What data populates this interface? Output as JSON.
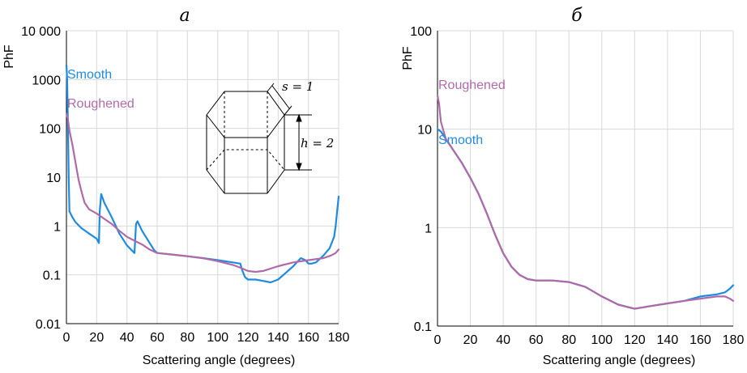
{
  "colors": {
    "smooth": "#1f8be0",
    "roughened": "#b06aa8",
    "grid": "#d9d9d9",
    "axis": "#000000"
  },
  "chart_data": [
    {
      "panel": "a",
      "type": "line",
      "title": "а",
      "xlabel": "Scattering angle (degrees)",
      "ylabel": "PhF",
      "yscale": "log",
      "xlim": [
        0,
        180
      ],
      "ylim": [
        0.01,
        10000
      ],
      "xticks": [
        0,
        20,
        40,
        60,
        80,
        100,
        120,
        140,
        160,
        180
      ],
      "xtick_labels": [
        "0",
        "20",
        "40",
        "60",
        "80",
        "100",
        "120",
        "140",
        "160",
        "180"
      ],
      "yticks": [
        0.01,
        0.1,
        1,
        10,
        100,
        1000,
        10000
      ],
      "ytick_labels": [
        "0.01",
        "0.1",
        "1",
        "10",
        "100",
        "1000",
        "10 000"
      ],
      "grid": true,
      "series": [
        {
          "name": "Smooth",
          "color_key": "smooth",
          "x": [
            0,
            0.5,
            1,
            1.5,
            2,
            4,
            6,
            10,
            15,
            20,
            21.5,
            22,
            23,
            25,
            30,
            35,
            40,
            45,
            46,
            47,
            50,
            55,
            58,
            60,
            70,
            80,
            90,
            100,
            110,
            115,
            116,
            118,
            120,
            125,
            130,
            135,
            140,
            145,
            150,
            155,
            158,
            160,
            162,
            165,
            170,
            174,
            177,
            178,
            179,
            180
          ],
          "y": [
            2000,
            1000,
            100,
            10,
            2,
            1.5,
            1.2,
            0.9,
            0.7,
            0.55,
            0.45,
            2.0,
            4.5,
            3.0,
            1.5,
            0.7,
            0.4,
            0.28,
            1.1,
            1.25,
            0.8,
            0.45,
            0.32,
            0.28,
            0.26,
            0.24,
            0.22,
            0.2,
            0.18,
            0.17,
            0.13,
            0.09,
            0.08,
            0.08,
            0.075,
            0.07,
            0.08,
            0.11,
            0.15,
            0.22,
            0.2,
            0.17,
            0.17,
            0.18,
            0.25,
            0.35,
            0.6,
            1.0,
            2.0,
            4.0
          ]
        },
        {
          "name": "Roughened",
          "color_key": "roughened",
          "x": [
            0,
            1,
            2,
            4,
            6,
            8,
            10,
            12,
            15,
            20,
            25,
            30,
            35,
            40,
            45,
            50,
            55,
            60,
            70,
            80,
            90,
            100,
            110,
            115,
            120,
            125,
            130,
            140,
            150,
            160,
            170,
            175,
            178,
            180
          ],
          "y": [
            200,
            150,
            90,
            45,
            20,
            9,
            5,
            3,
            2.2,
            1.8,
            1.4,
            1.1,
            0.8,
            0.6,
            0.5,
            0.42,
            0.33,
            0.28,
            0.26,
            0.24,
            0.22,
            0.19,
            0.16,
            0.14,
            0.12,
            0.115,
            0.12,
            0.15,
            0.18,
            0.2,
            0.22,
            0.25,
            0.28,
            0.33
          ]
        }
      ],
      "annotations": [
        "Smooth",
        "Roughened"
      ],
      "inset": {
        "s_label": "s = 1",
        "h_label": "h = 2"
      }
    },
    {
      "panel": "б",
      "type": "line",
      "title": "б",
      "xlabel": "Scattering angle (degrees)",
      "ylabel": "PhF",
      "yscale": "log",
      "xlim": [
        0,
        180
      ],
      "ylim": [
        0.1,
        100
      ],
      "xticks": [
        0,
        20,
        40,
        60,
        80,
        100,
        120,
        140,
        160,
        180
      ],
      "xtick_labels": [
        "0",
        "20",
        "40",
        "60",
        "80",
        "100",
        "120",
        "140",
        "160",
        "180"
      ],
      "yticks": [
        0.1,
        1,
        10,
        100
      ],
      "ytick_labels": [
        "0.1",
        "1",
        "10",
        "100"
      ],
      "grid": true,
      "series": [
        {
          "name": "Smooth",
          "color_key": "smooth",
          "x": [
            0,
            2,
            5,
            10,
            15,
            20,
            25,
            30,
            35,
            40,
            45,
            50,
            55,
            60,
            70,
            80,
            90,
            100,
            110,
            120,
            130,
            140,
            150,
            160,
            170,
            175,
            178,
            180
          ],
          "y": [
            10,
            9.5,
            8,
            6,
            4.5,
            3.2,
            2.2,
            1.4,
            0.85,
            0.55,
            0.4,
            0.33,
            0.3,
            0.29,
            0.29,
            0.28,
            0.25,
            0.2,
            0.165,
            0.15,
            0.16,
            0.17,
            0.18,
            0.2,
            0.21,
            0.22,
            0.24,
            0.26
          ]
        },
        {
          "name": "Roughened",
          "color_key": "roughened",
          "x": [
            0,
            1,
            2,
            5,
            10,
            15,
            20,
            25,
            30,
            35,
            40,
            45,
            50,
            55,
            60,
            70,
            80,
            90,
            100,
            110,
            120,
            130,
            140,
            150,
            160,
            170,
            175,
            178,
            180
          ],
          "y": [
            22,
            18,
            12,
            8,
            6,
            4.5,
            3.2,
            2.2,
            1.4,
            0.85,
            0.55,
            0.4,
            0.33,
            0.3,
            0.29,
            0.29,
            0.28,
            0.25,
            0.2,
            0.165,
            0.15,
            0.16,
            0.17,
            0.18,
            0.19,
            0.2,
            0.2,
            0.19,
            0.18
          ]
        }
      ],
      "annotations": [
        "Roughened",
        "Smooth"
      ]
    }
  ]
}
